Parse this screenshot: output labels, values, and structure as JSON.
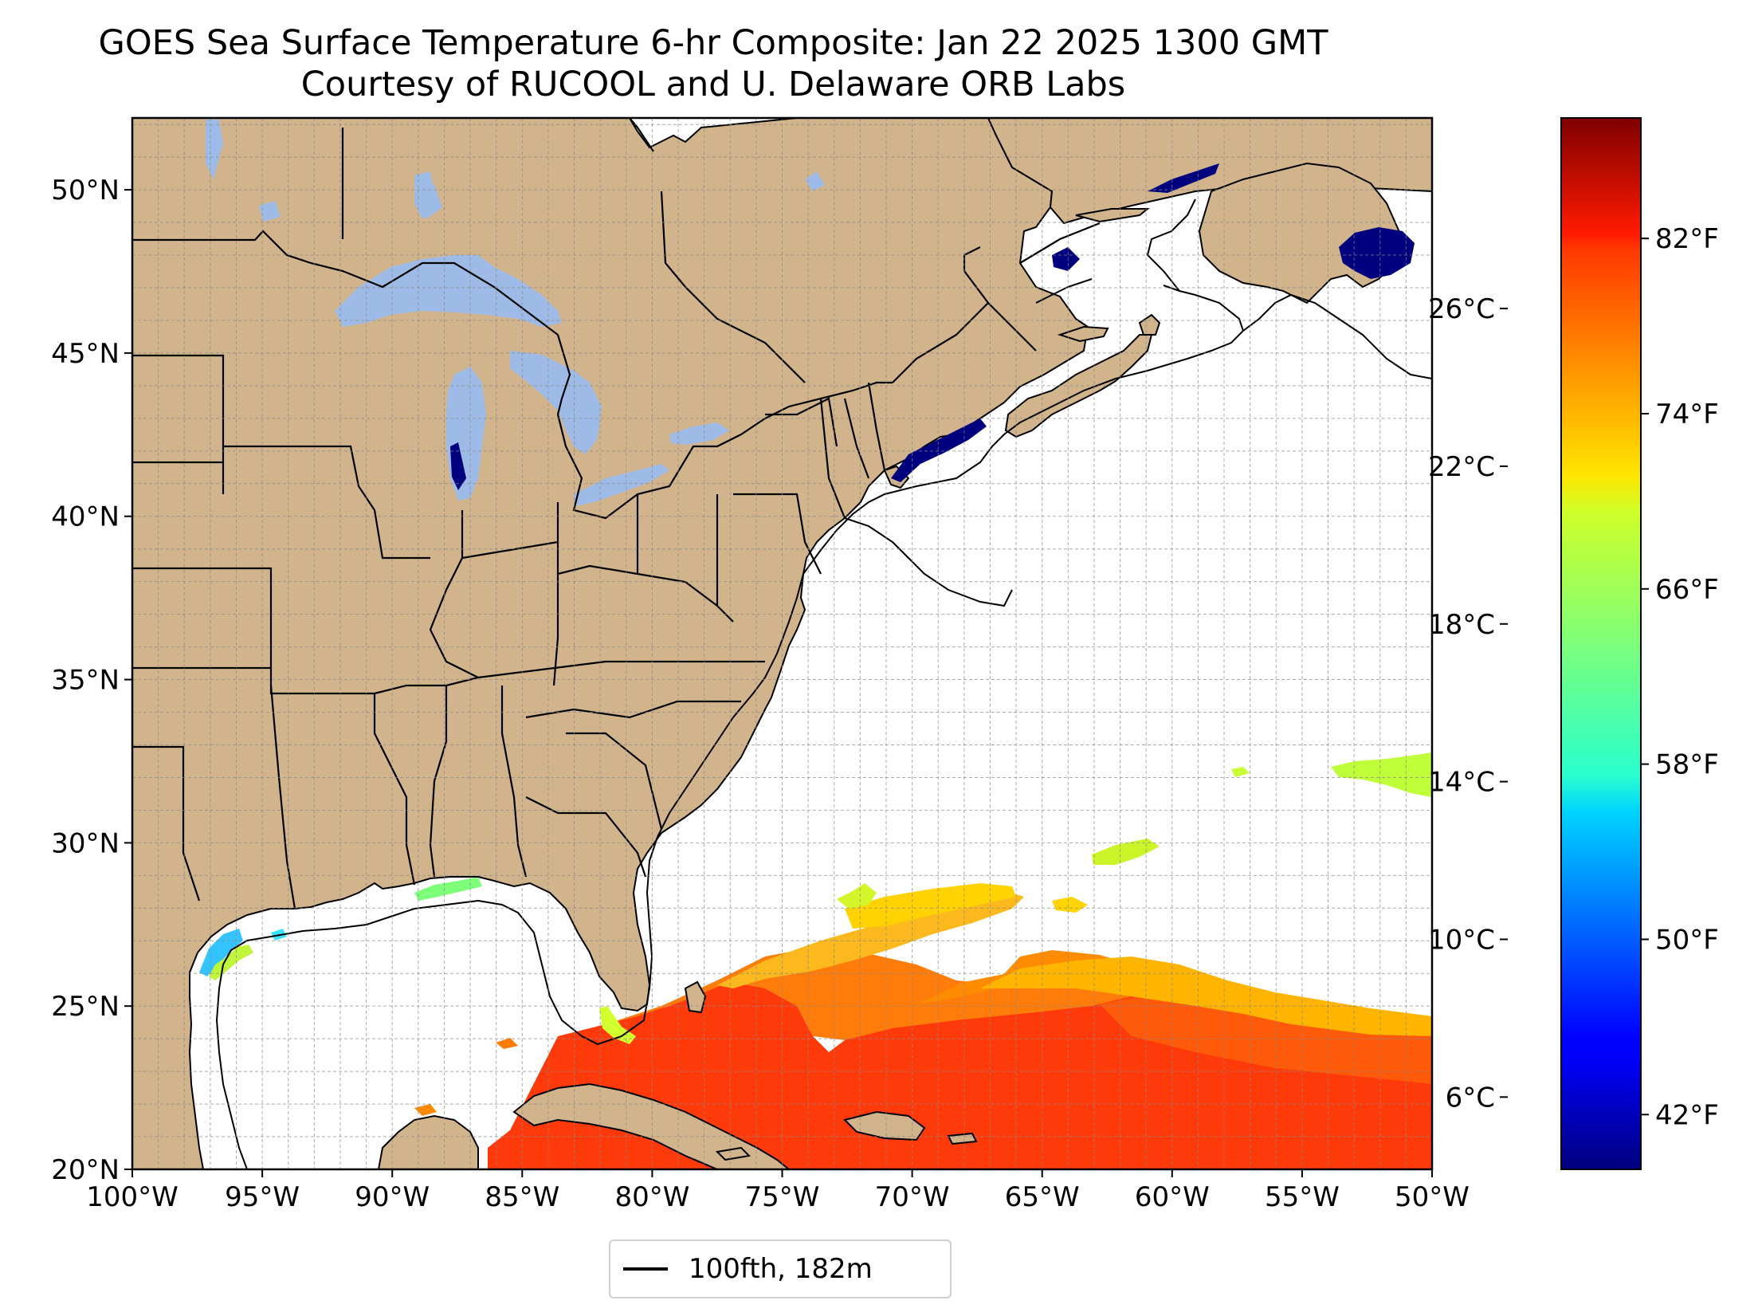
{
  "title": {
    "line1": "GOES Sea Surface Temperature 6-hr Composite: Jan 22 2025 1300 GMT",
    "line2": "Courtesy of RUCOOL and U. Delaware ORB Labs"
  },
  "map": {
    "lon_range": [
      -100,
      -50
    ],
    "lat_range": [
      20,
      52.2
    ],
    "lon_ticks": [
      "100°W",
      "95°W",
      "90°W",
      "85°W",
      "80°W",
      "75°W",
      "70°W",
      "65°W",
      "60°W",
      "55°W",
      "50°W"
    ],
    "lat_ticks": [
      "20°N",
      "25°N",
      "30°N",
      "35°N",
      "40°N",
      "45°N",
      "50°N"
    ],
    "land_color": "#d2b48c",
    "lake_color": "#9dbbe6",
    "grid": true
  },
  "legend": {
    "label": "100fth, 182m"
  },
  "colorbar": {
    "colormap": "jet",
    "range_f": [
      39.5,
      87.5
    ],
    "celsius_ticks": [
      "6°C",
      "10°C",
      "14°C",
      "18°C",
      "22°C",
      "26°C"
    ],
    "fahrenheit_ticks": [
      "42°F",
      "50°F",
      "58°F",
      "66°F",
      "74°F",
      "82°F"
    ]
  }
}
